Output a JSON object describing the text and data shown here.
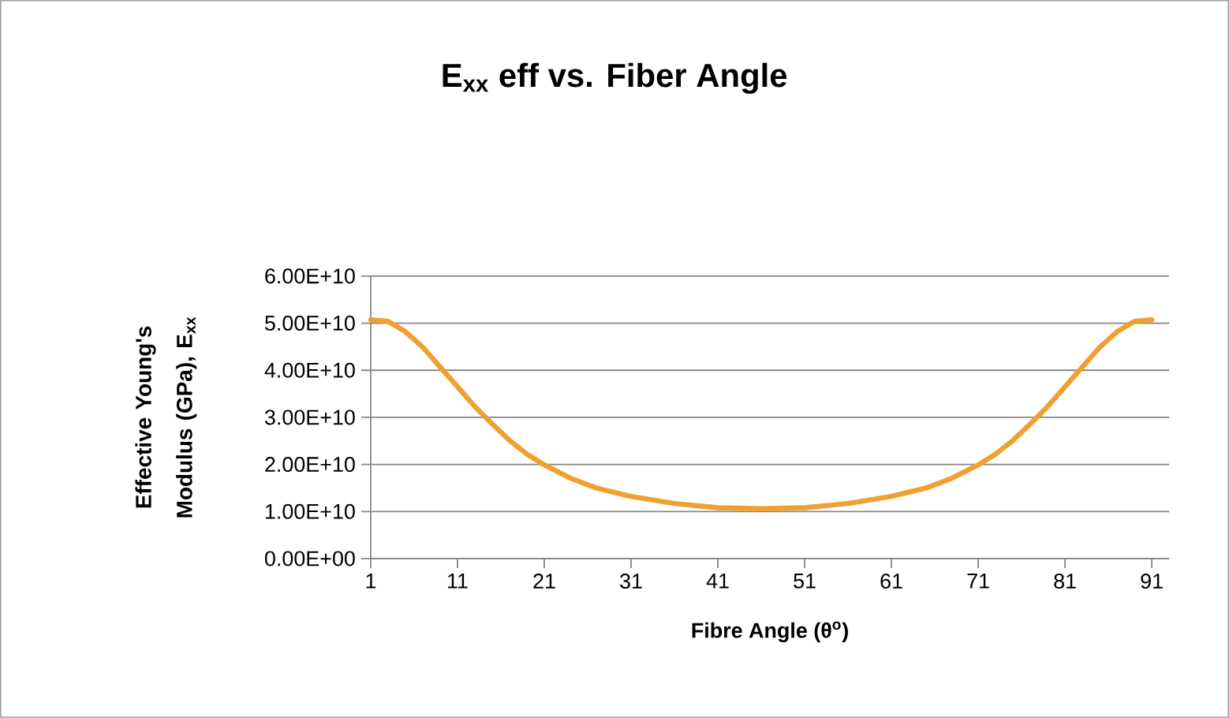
{
  "chart_data": {
    "type": "line",
    "title": "E$_{xx}$ eff vs. Fiber Angle",
    "xlabel": "Fibre Angle (θ$^{o}$)",
    "ylabel": "Effective Young's Modulus (GPa), E$_{xx}$",
    "series": [
      {
        "color": "#f0a030",
        "x": [
          1,
          3,
          5,
          7,
          9,
          11,
          13,
          15,
          17,
          19,
          21,
          24,
          27,
          31,
          36,
          41,
          46,
          51,
          56,
          61,
          65,
          68,
          71,
          73,
          75,
          77,
          79,
          81,
          83,
          85,
          87,
          89,
          91
        ],
        "values": [
          50700000000,
          50400000000,
          48200000000,
          44900000000,
          40700000000,
          36500000000,
          32300000000,
          28600000000,
          25100000000,
          22200000000,
          19900000000,
          17100000000,
          15000000000,
          13200000000,
          11700000000,
          10800000000,
          10600000000,
          10800000000,
          11700000000,
          13200000000,
          15000000000,
          17100000000,
          19900000000,
          22200000000,
          25100000000,
          28600000000,
          32300000000,
          36500000000,
          40700000000,
          44900000000,
          48200000000,
          50400000000,
          50700000000
        ]
      }
    ],
    "xlim": [
      1,
      93
    ],
    "xticks": [
      1,
      11,
      21,
      31,
      41,
      51,
      61,
      71,
      81,
      91
    ],
    "ylim": [
      0,
      60000000000
    ],
    "yticks": [
      {
        "value": 0,
        "label": "0.00E+00"
      },
      {
        "value": 10000000000,
        "label": "1.00E+10"
      },
      {
        "value": 20000000000,
        "label": "2.00E+10"
      },
      {
        "value": 30000000000,
        "label": "3.00E+10"
      },
      {
        "value": 40000000000,
        "label": "4.00E+10"
      },
      {
        "value": 50000000000,
        "label": "5.00E+10"
      },
      {
        "value": 60000000000,
        "label": "6.00E+10"
      }
    ],
    "grid": "y",
    "marker": "none",
    "line_style": "solid"
  }
}
